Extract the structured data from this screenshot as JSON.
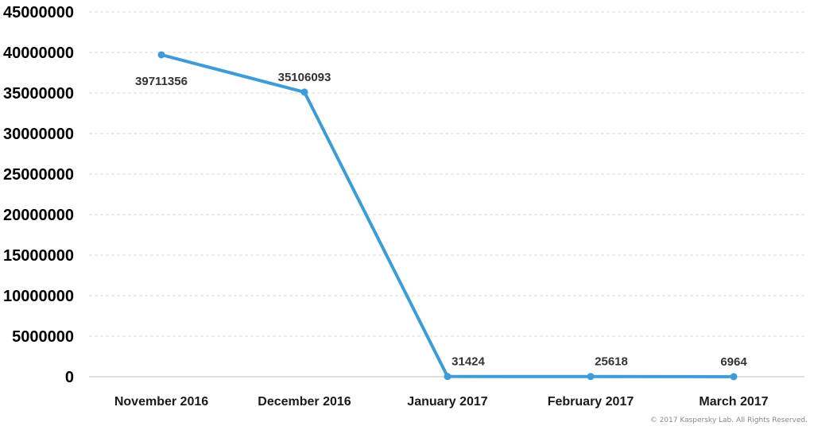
{
  "chart_data": {
    "type": "line",
    "title": "",
    "xlabel": "",
    "ylabel": "",
    "categories": [
      "November 2016",
      "December 2016",
      "January 2017",
      "February 2017",
      "March 2017"
    ],
    "series": [
      {
        "values": [
          39711356,
          35106093,
          31424,
          25618,
          6964
        ]
      }
    ],
    "data_labels": [
      "39711356",
      "35106093",
      "31424",
      "25618",
      "6964"
    ],
    "ylim": [
      0,
      45000000
    ],
    "yticks": [
      0,
      5000000,
      10000000,
      15000000,
      20000000,
      25000000,
      30000000,
      35000000,
      40000000,
      45000000
    ],
    "ytick_labels": [
      "0",
      "5000000",
      "10000000",
      "15000000",
      "20000000",
      "25000000",
      "30000000",
      "35000000",
      "40000000",
      "45000000"
    ],
    "grid": true,
    "legend": "none",
    "colors": {
      "line": "#3d9bd8",
      "grid": "#d9d9d9",
      "axis": "#bfbfbf"
    }
  },
  "footer": {
    "copyright": "© 2017 Kaspersky Lab. All Rights Reserved."
  }
}
